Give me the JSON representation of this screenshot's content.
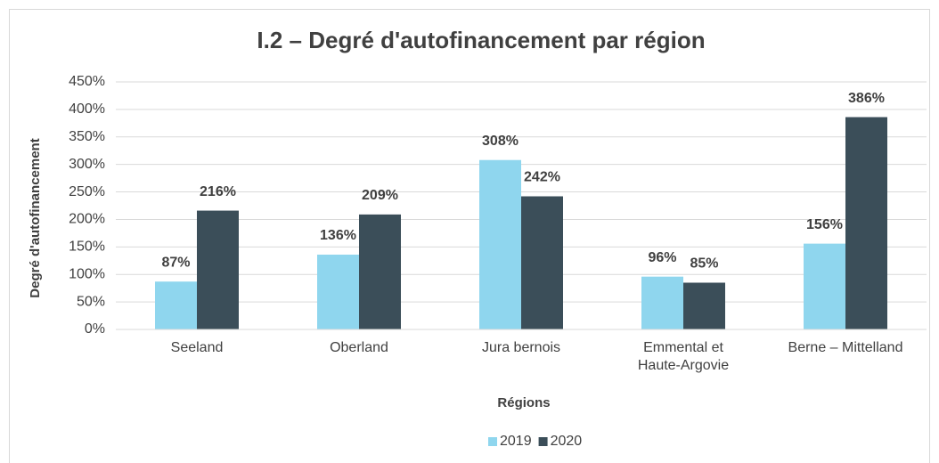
{
  "chart_data": {
    "type": "bar",
    "title": "I.2 – Degré d'autofinancement par région",
    "y_label": "Degré d'autofinancement",
    "x_label": "Régions",
    "categories": [
      "Seeland",
      "Oberland",
      "Jura bernois",
      "Emmental et Haute-Argovie",
      "Berne – Mittelland"
    ],
    "series": [
      {
        "name": "2019",
        "color": "#8fd6ee",
        "values": [
          87,
          136,
          308,
          96,
          156
        ],
        "value_labels": [
          "87%",
          "136%",
          "308%",
          "96%",
          "156%"
        ]
      },
      {
        "name": "2020",
        "color": "#3b4e59",
        "values": [
          216,
          209,
          242,
          85,
          386
        ],
        "value_labels": [
          "216%",
          "209%",
          "242%",
          "85%",
          "386%"
        ]
      }
    ],
    "ylim": [
      0,
      450
    ],
    "yticks": [
      {
        "value": 0,
        "label": "0%"
      },
      {
        "value": 50,
        "label": "50%"
      },
      {
        "value": 100,
        "label": "100%"
      },
      {
        "value": 150,
        "label": "150%"
      },
      {
        "value": 200,
        "label": "200%"
      },
      {
        "value": 250,
        "label": "250%"
      },
      {
        "value": 300,
        "label": "300%"
      },
      {
        "value": 350,
        "label": "350%"
      },
      {
        "value": 400,
        "label": "400%"
      },
      {
        "value": 450,
        "label": "450%"
      }
    ],
    "grid": true,
    "legend": "bottom"
  }
}
